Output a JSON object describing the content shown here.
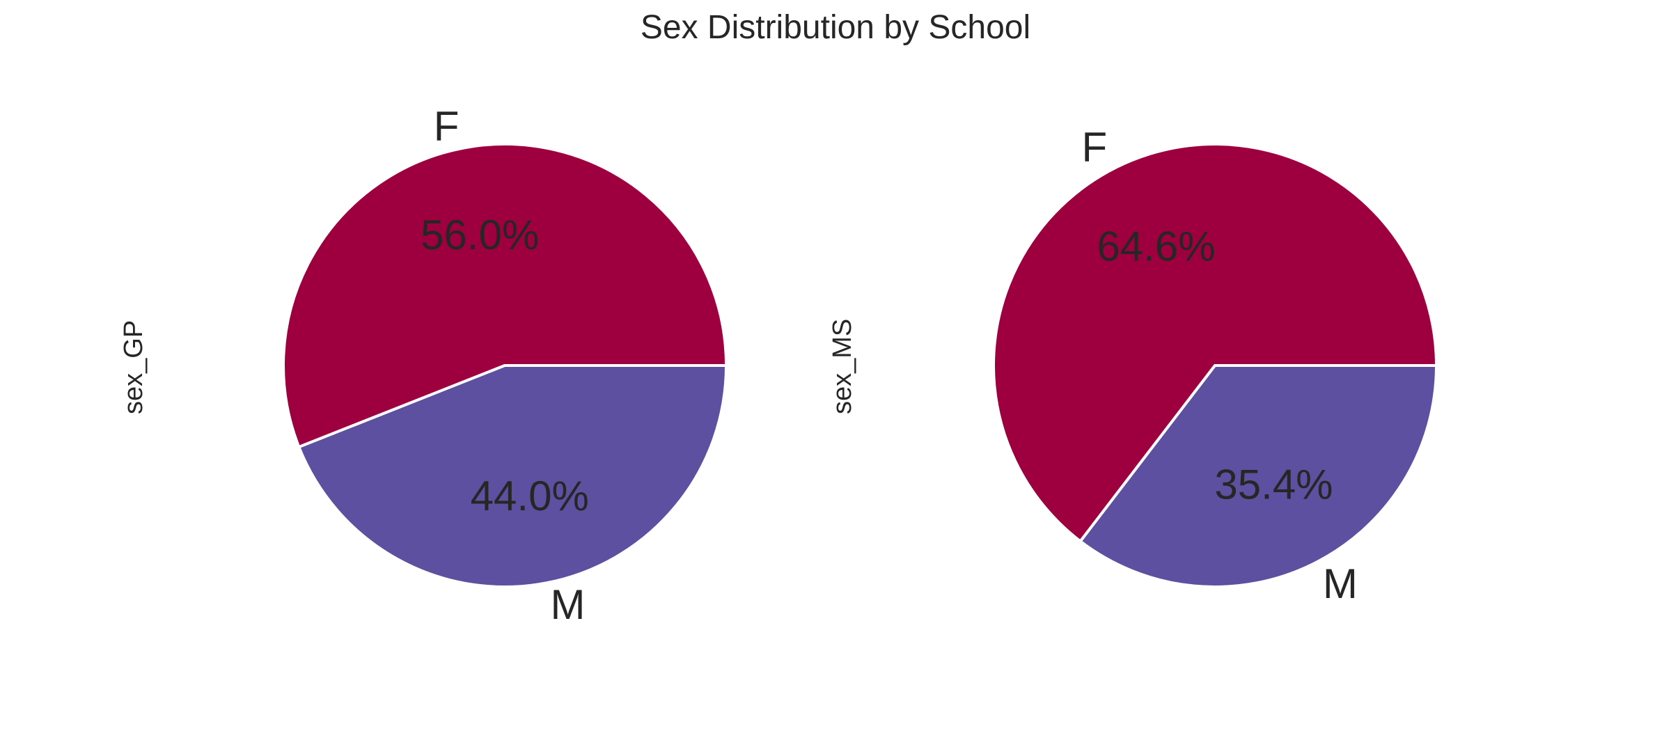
{
  "chart_data": {
    "title": "Sex Distribution by School",
    "charts": [
      {
        "type": "pie",
        "ylabel": "sex_GP",
        "categories": [
          "F",
          "M"
        ],
        "values": [
          56.0,
          44.0
        ],
        "percent_labels": [
          "56.0%",
          "44.0%"
        ],
        "colors": [
          "#9e003f",
          "#5e50a1"
        ]
      },
      {
        "type": "pie",
        "ylabel": "sex_MS",
        "categories": [
          "F",
          "M"
        ],
        "values": [
          64.6,
          35.4
        ],
        "percent_labels": [
          "64.6%",
          "35.4%"
        ],
        "colors": [
          "#9e003f",
          "#5e50a1"
        ]
      }
    ]
  }
}
